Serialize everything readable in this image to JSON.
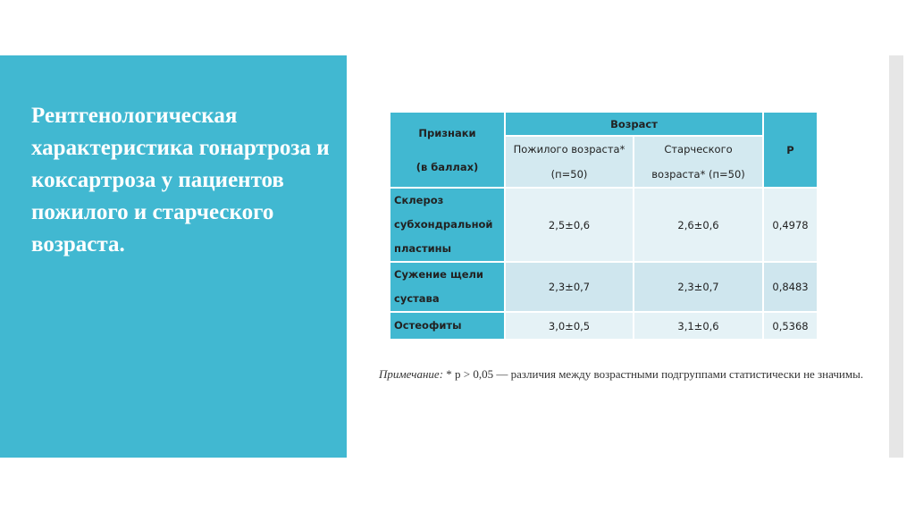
{
  "title": "Рентгенологическая характеристика гонартроза и коксартроза у пациентов пожилого и старческого возраста.",
  "table": {
    "h_feature_1": "Признаки",
    "h_feature_2": "(в баллах)",
    "h_age": "Возраст",
    "h_elderly_1": "Пожилого возраста*",
    "h_elderly_2": "(п=50)",
    "h_senile_1": "Старческого",
    "h_senile_2": "возраста* (п=50)",
    "h_p": "P",
    "rows": [
      {
        "feature": "Склероз субхондральной пластины",
        "elderly": "2,5±0,6",
        "senile": "2,6±0,6",
        "p": "0,4978"
      },
      {
        "feature": "Сужение щели сустава",
        "elderly": "2,3±0,7",
        "senile": "2,3±0,7",
        "p": "0,8483"
      },
      {
        "feature": "Остеофиты",
        "elderly": "3,0±0,5",
        "senile": "3,1±0,6",
        "p": "0,5368"
      }
    ]
  },
  "note": {
    "label": "Примечание:",
    "text": " * p > 0,05 — различия между возрастными подгруппами статистически не значимы."
  }
}
